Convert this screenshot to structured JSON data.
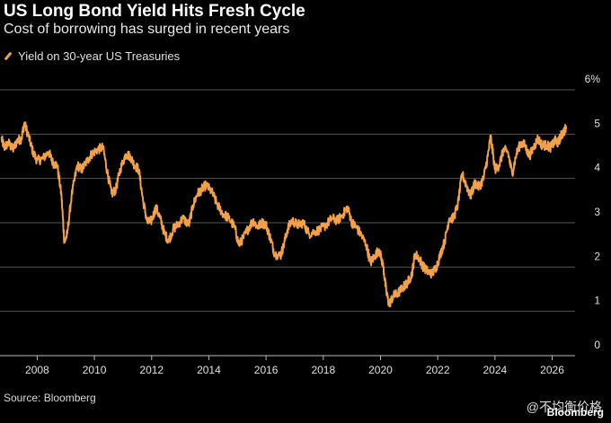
{
  "header": {
    "title": "US Long Bond Yield Hits Fresh Cycle",
    "subtitle": "Cost of borrowing has surged in recent years"
  },
  "footer": {
    "source": "Source: Bloomberg",
    "brand": "Bloomberg",
    "watermark": "@不均衡价格"
  },
  "colors": {
    "background": "#000000",
    "line": "#f2a04a",
    "grid": "#555555",
    "text": "#ffffff"
  },
  "chart_data": {
    "type": "line",
    "legend": "top-left",
    "grid": true,
    "xlim": [
      2006.7,
      2026.8
    ],
    "ylim": [
      0,
      6
    ],
    "x_ticks": [
      "2008",
      "2010",
      "2012",
      "2014",
      "2016",
      "2018",
      "2020",
      "2022",
      "2024",
      "2026"
    ],
    "y_ticks": [
      "0",
      "1",
      "2",
      "3",
      "4",
      "5",
      "6%"
    ],
    "series": [
      {
        "name": "Yield on 30-year US Treasuries",
        "x": [
          2006.75,
          2006.85,
          2007.0,
          2007.15,
          2007.3,
          2007.45,
          2007.55,
          2007.7,
          2007.85,
          2008.0,
          2008.2,
          2008.4,
          2008.55,
          2008.7,
          2008.85,
          2008.95,
          2009.05,
          2009.2,
          2009.4,
          2009.55,
          2009.75,
          2009.9,
          2010.1,
          2010.3,
          2010.45,
          2010.6,
          2010.75,
          2010.9,
          2011.1,
          2011.25,
          2011.4,
          2011.55,
          2011.7,
          2011.85,
          2012.0,
          2012.15,
          2012.3,
          2012.45,
          2012.6,
          2012.75,
          2012.9,
          2013.1,
          2013.3,
          2013.45,
          2013.6,
          2013.75,
          2013.9,
          2014.1,
          2014.3,
          2014.5,
          2014.7,
          2014.9,
          2015.05,
          2015.2,
          2015.4,
          2015.55,
          2015.7,
          2015.85,
          2016.0,
          2016.15,
          2016.3,
          2016.5,
          2016.6,
          2016.75,
          2016.9,
          2017.1,
          2017.3,
          2017.5,
          2017.7,
          2017.9,
          2018.1,
          2018.3,
          2018.5,
          2018.7,
          2018.85,
          2019.0,
          2019.15,
          2019.3,
          2019.5,
          2019.65,
          2019.8,
          2019.95,
          2020.1,
          2020.2,
          2020.3,
          2020.45,
          2020.6,
          2020.8,
          2020.95,
          2021.1,
          2021.2,
          2021.35,
          2021.5,
          2021.65,
          2021.8,
          2021.95,
          2022.1,
          2022.25,
          2022.4,
          2022.55,
          2022.7,
          2022.85,
          2023.0,
          2023.15,
          2023.3,
          2023.45,
          2023.6,
          2023.75,
          2023.85,
          2024.0,
          2024.15,
          2024.3,
          2024.45,
          2024.6,
          2024.75,
          2024.9,
          2025.05,
          2025.2,
          2025.35,
          2025.5,
          2025.65,
          2025.8,
          2025.95,
          2026.1,
          2026.2,
          2026.3,
          2026.4,
          2026.5
        ],
        "values": [
          4.9,
          4.7,
          4.8,
          4.65,
          4.85,
          4.9,
          5.25,
          4.95,
          4.6,
          4.4,
          4.45,
          4.6,
          4.35,
          4.3,
          3.6,
          2.55,
          2.75,
          3.6,
          4.3,
          4.2,
          4.4,
          4.55,
          4.65,
          4.7,
          4.15,
          3.65,
          3.75,
          4.2,
          4.55,
          4.5,
          4.3,
          4.2,
          3.5,
          3.0,
          3.05,
          3.35,
          3.1,
          2.75,
          2.6,
          2.85,
          2.95,
          3.1,
          2.95,
          3.4,
          3.65,
          3.75,
          3.85,
          3.7,
          3.4,
          3.2,
          3.1,
          2.9,
          2.5,
          2.65,
          2.9,
          3.05,
          2.9,
          3.0,
          2.95,
          2.65,
          2.3,
          2.25,
          2.45,
          2.85,
          3.05,
          2.95,
          3.0,
          2.75,
          2.8,
          2.85,
          2.95,
          3.1,
          3.05,
          3.2,
          3.35,
          3.0,
          2.9,
          2.75,
          2.5,
          2.1,
          2.25,
          2.4,
          2.0,
          1.45,
          1.15,
          1.35,
          1.4,
          1.55,
          1.65,
          1.85,
          2.3,
          2.2,
          2.0,
          1.9,
          1.85,
          2.0,
          2.3,
          2.6,
          3.1,
          3.1,
          3.4,
          4.1,
          3.85,
          3.6,
          3.9,
          3.8,
          4.0,
          4.5,
          4.95,
          4.2,
          4.3,
          4.65,
          4.6,
          4.1,
          4.55,
          4.8,
          4.75,
          4.5,
          4.7,
          4.9,
          4.75,
          4.75,
          4.7,
          4.85,
          4.8,
          4.95,
          5.05,
          5.15
        ]
      }
    ]
  }
}
